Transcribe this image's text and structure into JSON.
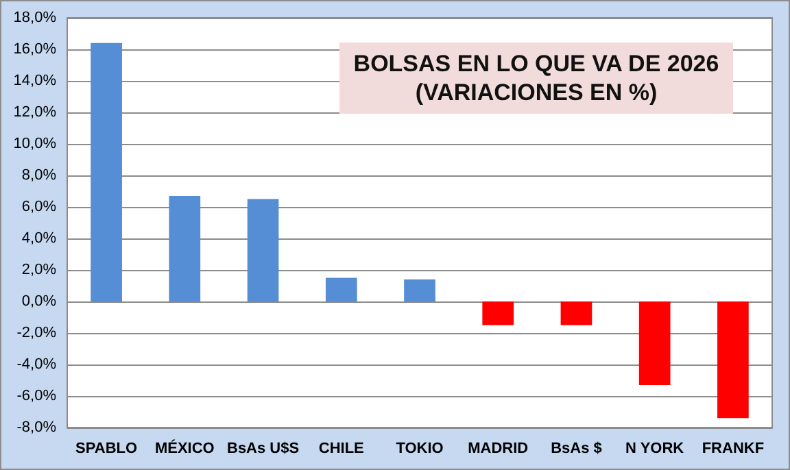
{
  "chart_data": {
    "type": "bar",
    "title": "BOLSAS EN LO QUE VA DE 2026",
    "subtitle": "(VARIACIONES EN %)",
    "categories": [
      "SPABLO",
      "MÉXICO",
      "BsAs U$S",
      "CHILE",
      "TOKIO",
      "MADRID",
      "BsAs $",
      "N YORK",
      "FRANKF"
    ],
    "values": [
      16.4,
      6.7,
      6.5,
      1.5,
      1.4,
      -1.5,
      -1.5,
      -5.3,
      -7.4
    ],
    "colors": [
      "#558ed5",
      "#558ed5",
      "#558ed5",
      "#558ed5",
      "#558ed5",
      "#ff0000",
      "#ff0000",
      "#ff0000",
      "#ff0000"
    ],
    "ylim": [
      -8,
      18
    ],
    "yticks": [
      {
        "value": -8,
        "label": "-8,0%"
      },
      {
        "value": -6,
        "label": "-6,0%"
      },
      {
        "value": -4,
        "label": "-4,0%"
      },
      {
        "value": -2,
        "label": "-2,0%"
      },
      {
        "value": 0,
        "label": "0,0%"
      },
      {
        "value": 2,
        "label": "2,0%"
      },
      {
        "value": 4,
        "label": "4,0%"
      },
      {
        "value": 6,
        "label": "6,0%"
      },
      {
        "value": 8,
        "label": "8,0%"
      },
      {
        "value": 10,
        "label": "10,0%"
      },
      {
        "value": 12,
        "label": "12,0%"
      },
      {
        "value": 14,
        "label": "14,0%"
      },
      {
        "value": 16,
        "label": "16,0%"
      },
      {
        "value": 18,
        "label": "18,0%"
      }
    ],
    "grid": "y"
  }
}
